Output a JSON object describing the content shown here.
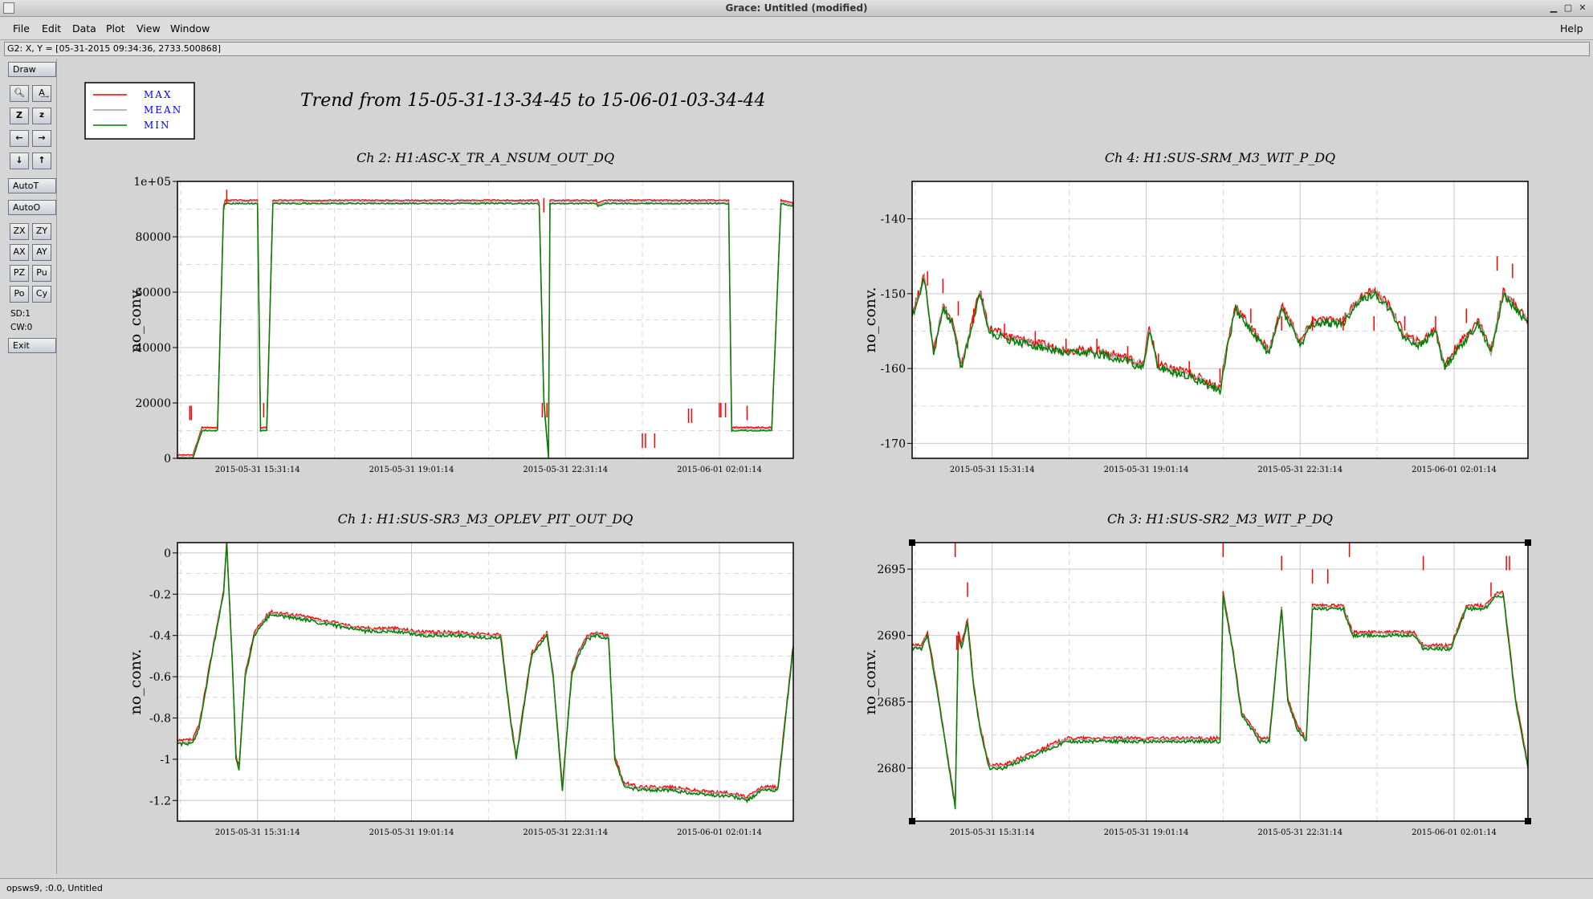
{
  "window": {
    "title": "Grace: Untitled (modified)"
  },
  "menu": {
    "file": "File",
    "edit": "Edit",
    "data": "Data",
    "plot": "Plot",
    "view": "View",
    "window": "Window",
    "help": "Help"
  },
  "locator": "G2: X, Y = [05-31-2015 09:34:36, 2733.500868]",
  "toolbar": {
    "draw": "Draw",
    "autot": "AutoT",
    "autoo": "AutoO",
    "zx": "ZX",
    "zy": "ZY",
    "ax": "AX",
    "ay": "AY",
    "pz": "PZ",
    "pu": "Pu",
    "po": "Po",
    "cy": "Cy",
    "sd": "SD:1",
    "cw": "CW:0",
    "exit": "Exit"
  },
  "status": "opsws9, :0.0, Untitled",
  "legend": [
    {
      "label": "MAX",
      "color": "#ff0000"
    },
    {
      "label": "MEAN",
      "color": "#a0a0a0"
    },
    {
      "label": "MIN",
      "color": "#008000"
    }
  ],
  "colors": {
    "max": "#ff0000",
    "mean": "#a0a0a0",
    "min": "#008000",
    "legend_text": "#0000ff"
  },
  "main_title": "Trend from 15-05-31-13-34-45 to 15-06-01-03-34-44",
  "chart_data": [
    {
      "type": "line",
      "title": "Ch 2: H1:ASC-X_TR_A_NSUM_OUT_DQ",
      "ylabel": "no_conv.",
      "ylim": [
        0,
        100000
      ],
      "yticks": [
        0,
        20000,
        40000,
        60000,
        80000,
        100000
      ],
      "ytick_labels": [
        "0",
        "20000",
        "40000",
        "60000",
        "80000",
        "1e+05"
      ],
      "xtick_labels": [
        "2015-05-31 15:31:14",
        "2015-05-31 19:01:14",
        "2015-05-31 22:31:14",
        "2015-06-01 02:01:14"
      ],
      "grid": true,
      "series": [
        {
          "name": "MIN",
          "x": [
            0,
            0.5,
            0.8,
            1,
            1.3,
            1.5,
            1.55,
            2.6,
            2.7,
            2.75,
            2.9,
            3.1,
            3.2,
            5,
            6,
            7,
            8,
            9,
            10,
            11,
            11.7,
            11.75,
            11.9,
            12.05,
            12.1,
            12.3,
            13,
            13.4,
            13.6,
            13.65,
            13.9,
            14.1,
            14.2,
            14.6,
            15,
            15.4,
            15.8,
            16.1,
            16.5,
            17,
            17.7,
            17.9,
            18,
            18.6,
            19,
            19.1,
            19.3,
            19.6,
            20
          ],
          "y": [
            0,
            0,
            10000,
            10000,
            10000,
            90000,
            92000,
            92000,
            10000,
            10000,
            10000,
            92000,
            92000,
            92000,
            92000,
            92000,
            92000,
            92000,
            92000,
            92000,
            92000,
            91000,
            20000,
            0,
            92000,
            92000,
            92000,
            92000,
            92000,
            91000,
            92000,
            92000,
            92000,
            92000,
            92000,
            92000,
            92000,
            92000,
            92000,
            92000,
            92000,
            92000,
            10000,
            10000,
            10000,
            10000,
            10000,
            92000,
            91000
          ]
        },
        {
          "name": "MAX",
          "x": [
            0.4,
            0.45,
            1.6,
            2.8,
            11.85,
            11.9,
            12.0,
            15.1,
            15.2,
            15.5,
            16.6,
            16.7,
            17.6,
            17.65,
            17.8,
            18.5
          ],
          "y": [
            19000,
            19000,
            97000,
            20000,
            20000,
            94000,
            20000,
            9000,
            9000,
            9000,
            18000,
            18000,
            20000,
            20000,
            20000,
            19000
          ]
        }
      ],
      "x_range": [
        0,
        20
      ]
    },
    {
      "type": "line",
      "title": "Ch 4: H1:SUS-SRM_M3_WIT_P_DQ",
      "ylabel": "no_conv.",
      "ylim": [
        -172,
        -135
      ],
      "yticks": [
        -170,
        -160,
        -150,
        -140
      ],
      "ytick_labels": [
        "-170",
        "-160",
        "-150",
        "-140"
      ],
      "xtick_labels": [
        "2015-05-31 15:31:14",
        "2015-05-31 19:01:14",
        "2015-05-31 22:31:14",
        "2015-06-01 02:01:14"
      ],
      "grid": true,
      "series": [
        {
          "name": "MIN",
          "x": [
            0,
            0.4,
            0.7,
            1,
            1.3,
            1.6,
            1.9,
            2.2,
            2.5,
            3,
            4,
            5,
            6,
            7,
            7.5,
            7.7,
            8,
            9,
            9.5,
            10,
            10.2,
            10.5,
            11,
            11.4,
            11.6,
            12,
            12.4,
            12.6,
            13,
            13.4,
            13.6,
            14,
            14.5,
            15,
            15.5,
            16,
            16.5,
            17,
            17.3,
            17.6,
            18,
            18.4,
            18.8,
            19.2,
            19.6,
            20
          ],
          "y": [
            -153,
            -148,
            -158,
            -152,
            -154,
            -160,
            -155,
            -150,
            -155,
            -156,
            -157,
            -158,
            -158,
            -159,
            -160,
            -155,
            -160,
            -161,
            -162,
            -163,
            -158,
            -152,
            -155,
            -157,
            -158,
            -152,
            -155,
            -157,
            -154,
            -154,
            -154,
            -154,
            -151,
            -150,
            -152,
            -156,
            -157,
            -155,
            -160,
            -158,
            -156,
            -154,
            -158,
            -150,
            -152,
            -154
          ]
        },
        {
          "name": "MAX",
          "x": [
            0,
            0.5,
            1,
            1.5,
            2,
            3,
            4,
            5,
            6,
            7,
            8,
            9,
            10,
            11,
            12,
            13,
            14,
            15,
            16,
            17,
            18,
            19,
            19.5,
            20
          ],
          "y": [
            -150,
            -147,
            -148,
            -151,
            -152,
            -154,
            -155,
            -156,
            -156,
            -157,
            -158,
            -159,
            -160,
            -152,
            -153,
            -153,
            -153,
            -153,
            -153,
            -153,
            -152,
            -145,
            -146,
            -151
          ]
        }
      ],
      "x_range": [
        0,
        20
      ]
    },
    {
      "type": "line",
      "title": "Ch 1: H1:SUS-SR3_M3_OPLEV_PIT_OUT_DQ",
      "ylabel": "no_conv.",
      "ylim": [
        -1.3,
        0.05
      ],
      "yticks": [
        -1.2,
        -1,
        -0.8,
        -0.6,
        -0.4,
        -0.2,
        0
      ],
      "ytick_labels": [
        "-1.2",
        "-1",
        "-0.8",
        "-0.6",
        "-0.4",
        "-0.2",
        "0"
      ],
      "xtick_labels": [
        "2015-05-31 15:31:14",
        "2015-05-31 19:01:14",
        "2015-05-31 22:31:14",
        "2015-06-01 02:01:14"
      ],
      "grid": true,
      "series": [
        {
          "name": "MIN",
          "x": [
            0,
            0.5,
            0.7,
            1,
            1.3,
            1.5,
            1.6,
            1.8,
            1.9,
            2.0,
            2.2,
            2.5,
            3,
            4,
            5,
            6,
            7,
            8,
            9,
            10,
            10.5,
            10.8,
            11,
            11.5,
            12,
            12.2,
            12.5,
            12.8,
            13,
            13.3,
            13.6,
            14,
            14.2,
            14.5,
            15,
            16,
            17,
            18,
            18.5,
            19,
            19.5,
            20
          ],
          "y": [
            -0.93,
            -0.92,
            -0.85,
            -0.6,
            -0.35,
            -0.2,
            0.05,
            -0.6,
            -1.0,
            -1.05,
            -0.6,
            -0.4,
            -0.3,
            -0.32,
            -0.35,
            -0.38,
            -0.38,
            -0.4,
            -0.4,
            -0.41,
            -0.41,
            -0.8,
            -1.0,
            -0.5,
            -0.4,
            -0.6,
            -1.15,
            -0.6,
            -0.5,
            -0.42,
            -0.4,
            -0.42,
            -1.0,
            -1.13,
            -1.15,
            -1.15,
            -1.17,
            -1.18,
            -1.2,
            -1.15,
            -1.15,
            -0.45
          ]
        }
      ],
      "x_range": [
        0,
        20
      ]
    },
    {
      "type": "line",
      "title": "Ch 3: H1:SUS-SR2_M3_WIT_P_DQ",
      "ylabel": "no_conv.",
      "ylim": [
        2676,
        2697
      ],
      "yticks": [
        2680,
        2685,
        2690,
        2695
      ],
      "ytick_labels": [
        "2680",
        "2685",
        "2690",
        "2695"
      ],
      "xtick_labels": [
        "2015-05-31 15:31:14",
        "2015-05-31 19:01:14",
        "2015-05-31 22:31:14",
        "2015-06-01 02:01:14"
      ],
      "grid": true,
      "series": [
        {
          "name": "MIN",
          "x": [
            0,
            0.3,
            0.5,
            0.8,
            1,
            1.2,
            1.4,
            1.5,
            1.6,
            1.8,
            2,
            2.2,
            2.5,
            3,
            4,
            5,
            6,
            7,
            7.5,
            8,
            9,
            10,
            10.1,
            10.4,
            10.7,
            11,
            11.3,
            11.6,
            12,
            12.2,
            12.5,
            12.8,
            13,
            13.5,
            14,
            14.3,
            14.5,
            15,
            16,
            16.3,
            16.6,
            17,
            17.5,
            18,
            18.6,
            19,
            19.2,
            19.6,
            20
          ],
          "y": [
            2689,
            2689,
            2690,
            2686,
            2683,
            2680,
            2677,
            2690,
            2689,
            2691,
            2686,
            2683,
            2680,
            2680,
            2681,
            2682,
            2682,
            2682,
            2682,
            2682,
            2682,
            2682,
            2693,
            2689,
            2684,
            2683,
            2682,
            2682,
            2692,
            2685,
            2683,
            2682,
            2692,
            2692,
            2692,
            2690,
            2690,
            2690,
            2690,
            2690,
            2689,
            2689,
            2689,
            2692,
            2692,
            2693,
            2693,
            2685,
            2680
          ]
        },
        {
          "name": "MAX",
          "x": [
            1.4,
            1.45,
            1.5,
            1.8,
            10.1,
            12,
            13,
            13.5,
            14.2,
            16.6,
            18.8,
            19.3,
            19.4
          ],
          "y": [
            2697,
            2690,
            2690,
            2694,
            2697,
            2696,
            2695,
            2695,
            2697,
            2696,
            2694,
            2696,
            2696
          ]
        }
      ],
      "x_range": [
        0,
        20
      ]
    }
  ]
}
